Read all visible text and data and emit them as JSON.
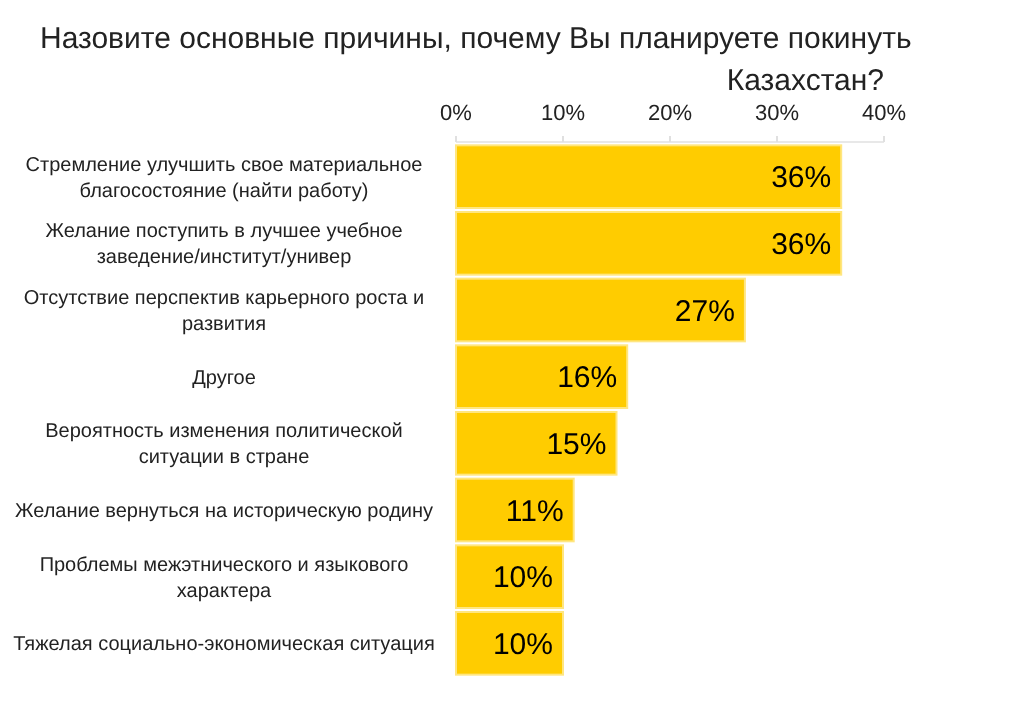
{
  "chart_data": {
    "type": "bar",
    "orientation": "horizontal",
    "title": "Назовите основные причины, почему Вы планируете покинуть Казахстан?",
    "categories": [
      "Стремление улучшить свое материальное благосостояние (найти работу)",
      "Желание поступить в лучшее учебное заведение/институт/универ",
      "Отсутствие перспектив карьерного роста и развития",
      "Другое",
      "Вероятность изменения политической ситуации в стране",
      "Желание вернуться на историческую родину",
      "Проблемы межэтнического и языкового характера",
      "Тяжелая социально-экономическая ситуация"
    ],
    "values": [
      36,
      36,
      27,
      16,
      15,
      11,
      10,
      10
    ],
    "color": "#ffcc00",
    "xlim": [
      0,
      40
    ],
    "xticks": [
      {
        "value": 0,
        "label": "0%"
      },
      {
        "value": 10,
        "label": "10%"
      },
      {
        "value": 20,
        "label": "20%"
      },
      {
        "value": 30,
        "label": "30%"
      },
      {
        "value": 40,
        "label": "40%"
      }
    ],
    "value_labels": [
      "36%",
      "36%",
      "27%",
      "16%",
      "15%",
      "11%",
      "10%",
      "10%"
    ],
    "grid": false
  }
}
